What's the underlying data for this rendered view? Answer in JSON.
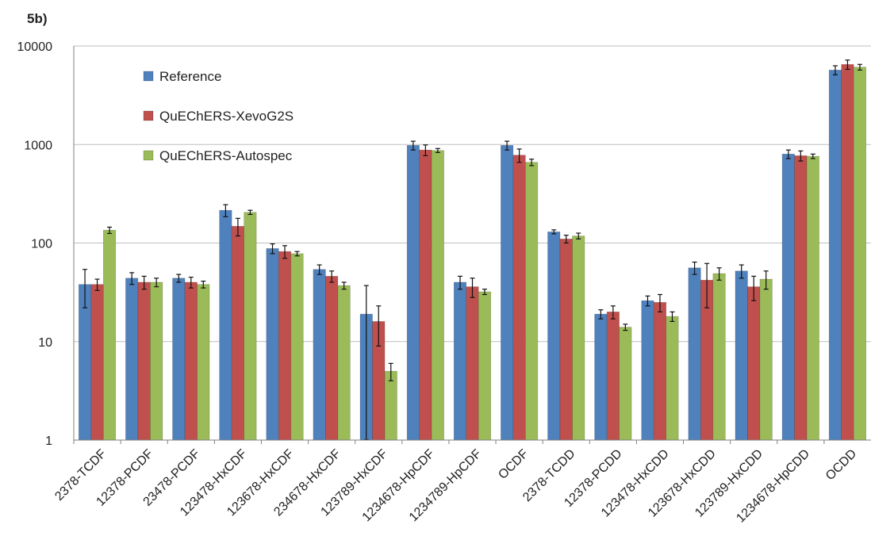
{
  "panel_label": "5b)",
  "chart_data": {
    "type": "bar",
    "yscale": "log",
    "ylim": [
      1,
      10000
    ],
    "yticks": [
      "1",
      "10",
      "100",
      "1000",
      "10000"
    ],
    "grid": true,
    "legend_position": "top-left",
    "categories": [
      "2378-TCDF",
      "12378-PCDF",
      "23478-PCDF",
      "123478-HxCDF",
      "123678-HxCDF",
      "234678-HxCDF",
      "123789-HxCDF",
      "1234678-HpCDF",
      "1234789-HpCDF",
      "OCDF",
      "2378-TCDD",
      "12378-PCDD",
      "123478-HxCDD",
      "123678-HxCDD",
      "123789-HxCDD",
      "1234678-HpCDD",
      "OCDD"
    ],
    "series": [
      {
        "name": "Reference",
        "color": "#4f81bd",
        "values": [
          38,
          44,
          44,
          215,
          88,
          54,
          19,
          980,
          40,
          980,
          130,
          19,
          26,
          56,
          52,
          800,
          5700
        ],
        "err": [
          16,
          6,
          4,
          30,
          10,
          6,
          18,
          100,
          6,
          100,
          6,
          2,
          3,
          8,
          8,
          80,
          600
        ]
      },
      {
        "name": "QuEChERS-XevoG2S",
        "color": "#c0504d",
        "values": [
          38,
          40,
          40,
          148,
          82,
          46,
          16,
          880,
          36,
          780,
          110,
          20,
          25,
          42,
          36,
          770,
          6500
        ],
        "err": [
          5,
          6,
          5,
          30,
          12,
          6,
          7,
          110,
          8,
          120,
          10,
          3,
          5,
          20,
          10,
          90,
          700
        ]
      },
      {
        "name": "QuEChERS-Autospec",
        "color": "#9bbb59",
        "values": [
          135,
          40,
          38,
          205,
          78,
          37,
          5,
          870,
          32,
          660,
          118,
          14,
          18,
          49,
          43,
          760,
          6100
        ],
        "err": [
          10,
          4,
          3,
          10,
          4,
          3,
          1,
          40,
          2,
          50,
          8,
          1,
          2,
          7,
          9,
          40,
          400
        ]
      }
    ]
  }
}
